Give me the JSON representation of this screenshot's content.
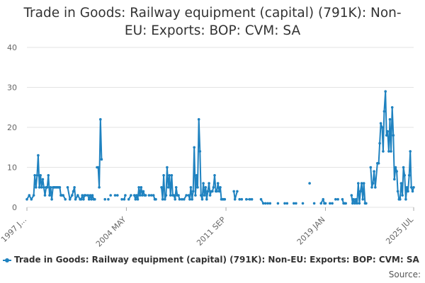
{
  "chart_data": {
    "type": "line",
    "title_lines": [
      "Trade in Goods: Railway equipment (capital) (791K): Non-",
      "EU: Exports: BOP: CVM: SA"
    ],
    "title": "Trade in Goods: Railway equipment (capital) (791K): Non-EU: Exports: BOP: CVM: SA",
    "xlabel": "",
    "ylabel": "",
    "x_range": [
      1997.0,
      2025.5
    ],
    "ylim": [
      0,
      40
    ],
    "y_ticks": [
      0,
      10,
      20,
      30,
      40
    ],
    "x_tick_labels": [
      {
        "label": "1997 J...",
        "x": 1997.0
      },
      {
        "label": "2004 MAY",
        "x": 2004.33
      },
      {
        "label": "2011 SEP",
        "x": 2011.67
      },
      {
        "label": "2019 JAN",
        "x": 2019.0
      },
      {
        "label": "2025 JUL",
        "x": 2025.5
      }
    ],
    "grid": true,
    "legend_position": "bottom-left",
    "series": [
      {
        "name": "Trade in Goods: Railway equipment (capital) (791K): Non-EU: Exports: BOP: CVM: SA",
        "color": "#1f82c0",
        "segments": [
          [
            [
              1997.0,
              2
            ],
            [
              1997.17,
              3
            ],
            [
              1997.33,
              2
            ],
            [
              1997.5,
              3
            ],
            [
              1997.58,
              8
            ],
            [
              1997.67,
              5
            ],
            [
              1997.75,
              8
            ],
            [
              1997.83,
              13
            ],
            [
              1997.92,
              5
            ],
            [
              1998.0,
              8
            ],
            [
              1998.08,
              5
            ],
            [
              1998.17,
              7
            ],
            [
              1998.25,
              5
            ],
            [
              1998.33,
              3
            ],
            [
              1998.42,
              5
            ],
            [
              1998.5,
              5
            ],
            [
              1998.58,
              8
            ],
            [
              1998.67,
              3
            ],
            [
              1998.75,
              5
            ],
            [
              1998.83,
              2
            ],
            [
              1998.92,
              5
            ],
            [
              1999.0,
              5
            ],
            [
              1999.08,
              5
            ],
            [
              1999.17,
              5
            ],
            [
              1999.25,
              5
            ],
            [
              1999.33,
              5
            ],
            [
              1999.42,
              5
            ],
            [
              1999.5,
              3
            ],
            [
              1999.58,
              3
            ],
            [
              1999.67,
              3
            ],
            [
              1999.83,
              2
            ]
          ],
          [
            [
              2000.0,
              5
            ],
            [
              2000.17,
              2
            ],
            [
              2000.33,
              3
            ],
            [
              2000.42,
              4
            ],
            [
              2000.5,
              5
            ],
            [
              2000.58,
              2
            ],
            [
              2000.75,
              3
            ],
            [
              2000.92,
              2
            ],
            [
              2001.0,
              2
            ],
            [
              2001.08,
              3
            ],
            [
              2001.17,
              2
            ],
            [
              2001.25,
              3
            ],
            [
              2001.33,
              3
            ],
            [
              2001.5,
              3
            ],
            [
              2001.58,
              2
            ],
            [
              2001.67,
              3
            ],
            [
              2001.75,
              2
            ],
            [
              2001.83,
              3
            ],
            [
              2001.92,
              2
            ],
            [
              2002.0,
              2
            ]
          ],
          [
            [
              2002.17,
              10
            ],
            [
              2002.25,
              10
            ],
            [
              2002.33,
              5
            ],
            [
              2002.42,
              22
            ],
            [
              2002.5,
              12
            ]
          ],
          [
            [
              2002.75,
              2
            ]
          ],
          [
            [
              2003.0,
              2
            ]
          ],
          [
            [
              2003.17,
              3
            ]
          ],
          [
            [
              2003.5,
              3
            ],
            [
              2003.67,
              3
            ]
          ],
          [
            [
              2004.0,
              2
            ],
            [
              2004.17,
              2
            ],
            [
              2004.25,
              3
            ]
          ],
          [
            [
              2004.5,
              2
            ],
            [
              2004.67,
              3
            ]
          ],
          [
            [
              2004.92,
              3
            ],
            [
              2005.0,
              2
            ],
            [
              2005.08,
              3
            ],
            [
              2005.17,
              2
            ],
            [
              2005.25,
              5
            ],
            [
              2005.33,
              3
            ],
            [
              2005.42,
              5
            ],
            [
              2005.5,
              3
            ],
            [
              2005.58,
              4
            ],
            [
              2005.67,
              3
            ],
            [
              2005.75,
              3
            ]
          ],
          [
            [
              2006.0,
              3
            ],
            [
              2006.17,
              3
            ],
            [
              2006.33,
              3
            ],
            [
              2006.42,
              2
            ],
            [
              2006.5,
              2
            ]
          ],
          [
            [
              2006.92,
              5
            ],
            [
              2007.0,
              2
            ],
            [
              2007.08,
              8
            ],
            [
              2007.17,
              2
            ],
            [
              2007.25,
              3
            ],
            [
              2007.33,
              10
            ],
            [
              2007.42,
              5
            ],
            [
              2007.5,
              8
            ],
            [
              2007.58,
              3
            ],
            [
              2007.67,
              8
            ],
            [
              2007.75,
              3
            ],
            [
              2007.83,
              3
            ],
            [
              2007.92,
              2
            ],
            [
              2008.0,
              5
            ],
            [
              2008.08,
              3
            ],
            [
              2008.17,
              3
            ],
            [
              2008.25,
              2
            ],
            [
              2008.42,
              2
            ]
          ],
          [
            [
              2008.58,
              2
            ],
            [
              2008.75,
              3
            ],
            [
              2008.92,
              3
            ],
            [
              2009.0,
              2
            ],
            [
              2009.08,
              5
            ],
            [
              2009.17,
              2
            ],
            [
              2009.25,
              4
            ],
            [
              2009.33,
              15
            ],
            [
              2009.42,
              3
            ],
            [
              2009.5,
              8
            ],
            [
              2009.58,
              5
            ],
            [
              2009.67,
              22
            ],
            [
              2009.75,
              14
            ],
            [
              2009.83,
              3
            ],
            [
              2009.92,
              2
            ],
            [
              2010.0,
              6
            ],
            [
              2010.08,
              3
            ],
            [
              2010.17,
              5
            ],
            [
              2010.25,
              2
            ],
            [
              2010.33,
              4
            ],
            [
              2010.42,
              6
            ],
            [
              2010.5,
              3
            ],
            [
              2010.58,
              4
            ],
            [
              2010.67,
              4
            ],
            [
              2010.75,
              5
            ],
            [
              2010.83,
              8
            ],
            [
              2010.92,
              4
            ],
            [
              2011.0,
              4
            ],
            [
              2011.08,
              6
            ],
            [
              2011.17,
              4
            ],
            [
              2011.25,
              5
            ],
            [
              2011.33,
              2
            ],
            [
              2011.42,
              2
            ],
            [
              2011.5,
              2
            ],
            [
              2011.58,
              2
            ]
          ],
          [
            [
              2012.25,
              4
            ],
            [
              2012.33,
              2
            ],
            [
              2012.5,
              4
            ]
          ],
          [
            [
              2012.67,
              2
            ],
            [
              2012.83,
              2
            ]
          ],
          [
            [
              2013.17,
              2
            ],
            [
              2013.42,
              2
            ],
            [
              2013.58,
              2
            ]
          ],
          [
            [
              2014.25,
              2
            ],
            [
              2014.42,
              1
            ],
            [
              2014.58,
              1
            ],
            [
              2014.75,
              1
            ],
            [
              2014.92,
              1
            ]
          ],
          [
            [
              2015.5,
              1
            ]
          ],
          [
            [
              2016.0,
              1
            ],
            [
              2016.17,
              1
            ]
          ],
          [
            [
              2016.67,
              1
            ],
            [
              2016.83,
              1
            ]
          ],
          [
            [
              2017.33,
              1
            ]
          ],
          [
            [
              2017.83,
              6
            ]
          ],
          [
            [
              2018.17,
              1
            ]
          ],
          [
            [
              2018.67,
              1
            ],
            [
              2018.83,
              2
            ],
            [
              2018.92,
              1
            ],
            [
              2019.0,
              1
            ]
          ],
          [
            [
              2019.33,
              1
            ],
            [
              2019.5,
              1
            ]
          ],
          [
            [
              2019.75,
              2
            ],
            [
              2019.92,
              2
            ]
          ],
          [
            [
              2020.25,
              2
            ],
            [
              2020.33,
              1
            ],
            [
              2020.42,
              1
            ],
            [
              2020.5,
              1
            ]
          ],
          [
            [
              2020.92,
              3
            ],
            [
              2021.0,
              1
            ],
            [
              2021.08,
              2
            ],
            [
              2021.17,
              1
            ],
            [
              2021.25,
              2
            ],
            [
              2021.33,
              1
            ],
            [
              2021.42,
              6
            ],
            [
              2021.5,
              1
            ],
            [
              2021.58,
              4
            ],
            [
              2021.67,
              6
            ],
            [
              2021.75,
              2
            ],
            [
              2021.83,
              6
            ],
            [
              2021.92,
              1
            ],
            [
              2022.0,
              1
            ]
          ],
          [
            [
              2022.33,
              10
            ],
            [
              2022.42,
              5
            ],
            [
              2022.5,
              6
            ],
            [
              2022.58,
              9
            ],
            [
              2022.67,
              5
            ],
            [
              2022.83,
              11
            ],
            [
              2022.92,
              11
            ],
            [
              2023.0,
              16
            ],
            [
              2023.08,
              21
            ],
            [
              2023.17,
              20
            ],
            [
              2023.25,
              14
            ],
            [
              2023.33,
              24
            ],
            [
              2023.42,
              29
            ],
            [
              2023.5,
              18
            ],
            [
              2023.58,
              19
            ],
            [
              2023.67,
              14
            ],
            [
              2023.75,
              22
            ],
            [
              2023.83,
              14
            ],
            [
              2023.92,
              25
            ],
            [
              2024.0,
              18
            ],
            [
              2024.08,
              7
            ],
            [
              2024.17,
              10
            ],
            [
              2024.25,
              9
            ],
            [
              2024.33,
              4
            ],
            [
              2024.42,
              2
            ],
            [
              2024.5,
              2
            ],
            [
              2024.58,
              6
            ],
            [
              2024.67,
              3
            ],
            [
              2024.75,
              10
            ],
            [
              2024.83,
              8
            ],
            [
              2024.92,
              2
            ],
            [
              2025.0,
              5
            ],
            [
              2025.08,
              4
            ],
            [
              2025.17,
              8
            ],
            [
              2025.25,
              14
            ],
            [
              2025.33,
              5
            ],
            [
              2025.42,
              4
            ],
            [
              2025.5,
              5
            ]
          ]
        ]
      }
    ]
  },
  "legend": {
    "label": "Trade in Goods: Railway equipment (capital) (791K): Non-EU: Exports: BOP: CVM: SA"
  },
  "source": {
    "label": "Source:"
  }
}
